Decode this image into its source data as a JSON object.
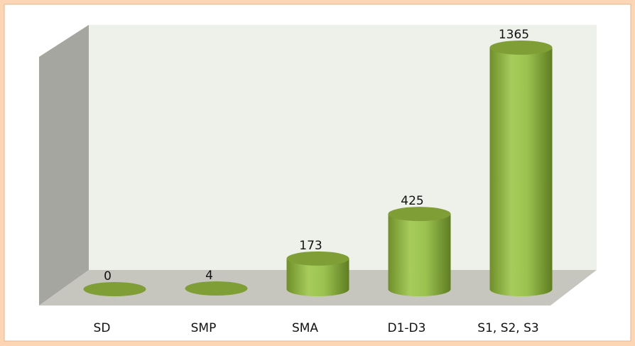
{
  "chart_data": {
    "type": "bar",
    "categories": [
      "SD",
      "SMP",
      "SMA",
      "D1-D3",
      "S1, S2, S3"
    ],
    "values": [
      0,
      4,
      173,
      425,
      1365
    ],
    "color": "#9bbb59"
  }
}
